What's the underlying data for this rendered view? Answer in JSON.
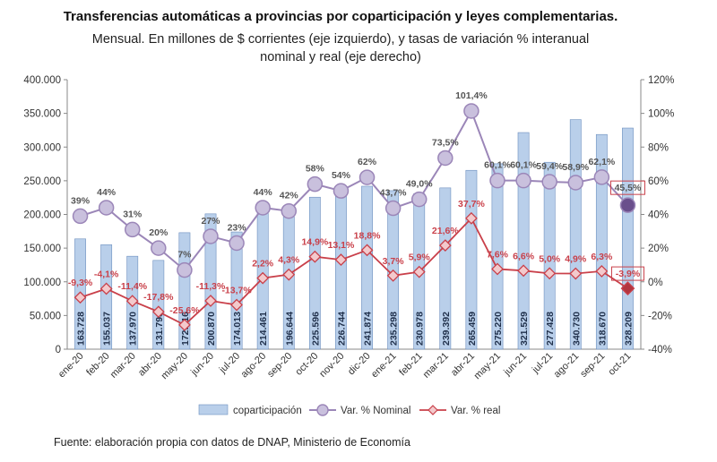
{
  "title": "Transferencias automáticas a provincias por coparticipación y leyes complementarias.",
  "subtitle_line1": "Mensual. En millones de $ corrientes (eje izquierdo), y tasas de variación % interanual",
  "subtitle_line2": "nominal y real (eje derecho)",
  "source": "Fuente: elaboración propia con datos de DNAP, Ministerio de Economía",
  "colors": {
    "bar_fill": "#b9cfea",
    "bar_stroke": "#6d8fbf",
    "nominal_line": "#9b86b8",
    "nominal_marker": "#c9c0dd",
    "nominal_highlight": "#6a4f8c",
    "real_line": "#c9404a",
    "real_marker": "#f3c9cc",
    "real_highlight": "#b2353f",
    "axis": "#888888",
    "highlight_box": "#c9404a"
  },
  "chart_data": {
    "type": "bar",
    "categories": [
      "ene-20",
      "feb-20",
      "mar-20",
      "abr-20",
      "may-20",
      "jun-20",
      "jul-20",
      "ago-20",
      "sep-20",
      "oct-20",
      "nov-20",
      "dic-20",
      "ene-21",
      "feb-21",
      "mar-21",
      "abr-21",
      "may-21",
      "jun-21",
      "jul-21",
      "ago-21",
      "sep-21",
      "oct-21"
    ],
    "left_axis": {
      "min": 0,
      "max": 400000,
      "step": 50000,
      "tick_labels": [
        "0",
        "50.000",
        "100.000",
        "150.000",
        "200.000",
        "250.000",
        "300.000",
        "350.000",
        "400.000"
      ]
    },
    "right_axis": {
      "min": -40,
      "max": 120,
      "step": 20,
      "tick_labels": [
        "-40%",
        "-20%",
        "0%",
        "20%",
        "40%",
        "60%",
        "80%",
        "100%",
        "120%"
      ]
    },
    "series": [
      {
        "name": "coparticipación",
        "type": "bar",
        "axis": "left",
        "values": [
          163728,
          155037,
          137970,
          131793,
          172916,
          200870,
          174013,
          214461,
          196644,
          225596,
          226744,
          241874,
          235298,
          230978,
          239392,
          265459,
          275220,
          321529,
          277428,
          340730,
          318670,
          328209
        ],
        "labels": [
          "163.728",
          "155.037",
          "137.970",
          "131.793",
          "172.916",
          "200.870",
          "174.013",
          "214.461",
          "196.644",
          "225.596",
          "226.744",
          "241.874",
          "235.298",
          "230.978",
          "239.392",
          "265.459",
          "275.220",
          "321.529",
          "277.428",
          "340.730",
          "318.670",
          "328.209"
        ]
      },
      {
        "name": "Var. % Nominal",
        "type": "line",
        "axis": "right",
        "values": [
          39,
          44,
          31,
          20,
          7,
          27,
          23,
          44,
          42,
          58,
          54,
          62,
          43.7,
          49.0,
          73.5,
          101.4,
          60.1,
          60.1,
          59.4,
          58.9,
          62.1,
          45.5
        ],
        "labels": [
          "39%",
          "44%",
          "31%",
          "20%",
          "7%",
          "27%",
          "23%",
          "44%",
          "42%",
          "58%",
          "54%",
          "62%",
          "43,7%",
          "49,0%",
          "73,5%",
          "101,4%",
          "60,1%",
          "60,1%",
          "59,4%",
          "58,9%",
          "62,1%",
          "45,5%"
        ]
      },
      {
        "name": "Var. % real",
        "type": "line",
        "axis": "right",
        "values": [
          -9.3,
          -4.1,
          -11.4,
          -17.8,
          -25.6,
          -11.3,
          -13.7,
          2.2,
          4.3,
          14.9,
          13.1,
          18.8,
          3.7,
          5.9,
          21.6,
          37.7,
          7.6,
          6.6,
          5.0,
          4.9,
          6.3,
          -3.9
        ],
        "labels": [
          "-9,3%",
          "-4,1%",
          "-11,4%",
          "-17,8%",
          "-25,6%",
          "-11,3%",
          "-13,7%",
          "2,2%",
          "4,3%",
          "14,9%",
          "13,1%",
          "18,8%",
          "3,7%",
          "5,9%",
          "21,6%",
          "37,7%",
          "7,6%",
          "6,6%",
          "5,0%",
          "4,9%",
          "6,3%",
          "-3,9%"
        ]
      }
    ],
    "legend": {
      "position": "bottom",
      "items": [
        "coparticipación",
        "Var. % Nominal",
        "Var. % real"
      ]
    },
    "highlight_last": true
  }
}
